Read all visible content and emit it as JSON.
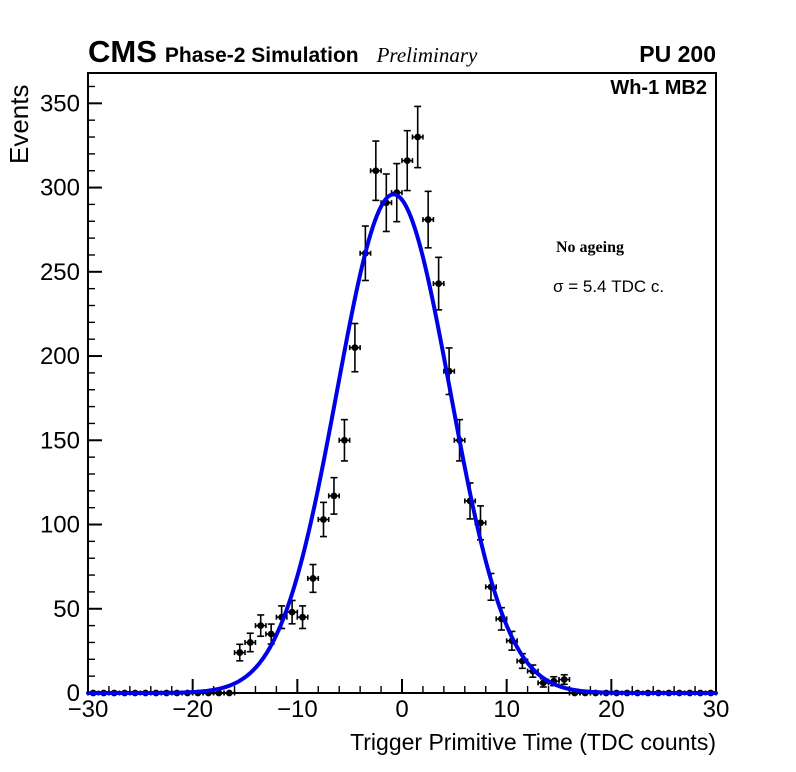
{
  "header": {
    "experiment": "CMS",
    "context": "Phase-2 Simulation",
    "status": "Preliminary",
    "pileup": "PU 200"
  },
  "plot": {
    "region_label": "Wh-1 MB2",
    "annotation_line1": "No ageing",
    "annotation_line2": "σ = 5.4 TDC c."
  },
  "chart_data": {
    "type": "scatter",
    "description": "Histogram of trigger primitive time (black points with Poisson error bars) with Gaussian fit curve",
    "title": "",
    "xlabel": "Trigger Primitive Time (TDC counts)",
    "ylabel": "Events",
    "xlim": [
      -30,
      30
    ],
    "ylim": [
      0,
      368
    ],
    "x_major_ticks": [
      -30,
      -20,
      -10,
      0,
      10,
      20,
      30
    ],
    "x_minor_step": 2,
    "y_major_ticks": [
      0,
      50,
      100,
      150,
      200,
      250,
      300,
      350
    ],
    "y_minor_step": 10,
    "grid": false,
    "legend": null,
    "bin_width": 1,
    "bin_centers": [
      -29.5,
      -28.5,
      -27.5,
      -26.5,
      -25.5,
      -24.5,
      -23.5,
      -22.5,
      -21.5,
      -20.5,
      -19.5,
      -18.5,
      -17.5,
      -16.5,
      -15.5,
      -14.5,
      -13.5,
      -12.5,
      -11.5,
      -10.5,
      -9.5,
      -8.5,
      -7.5,
      -6.5,
      -5.5,
      -4.5,
      -3.5,
      -2.5,
      -1.5,
      -0.5,
      0.5,
      1.5,
      2.5,
      3.5,
      4.5,
      5.5,
      6.5,
      7.5,
      8.5,
      9.5,
      10.5,
      11.5,
      12.5,
      13.5,
      14.5,
      15.5,
      16.5,
      17.5,
      18.5,
      19.5,
      20.5,
      21.5,
      22.5,
      23.5,
      24.5,
      25.5,
      26.5,
      27.5,
      28.5,
      29.5
    ],
    "counts": [
      0,
      0,
      0,
      0,
      0,
      0,
      0,
      0,
      0,
      0,
      0,
      0,
      0,
      0,
      24,
      30,
      40,
      35,
      45,
      48,
      45,
      68,
      103,
      117,
      150,
      205,
      261,
      310,
      291,
      297,
      316,
      330,
      281,
      243,
      191,
      150,
      114,
      101,
      63,
      44,
      31,
      19,
      13,
      6,
      7,
      8,
      0,
      0,
      0,
      0,
      0,
      0,
      0,
      0,
      0,
      0,
      0,
      0,
      0,
      0
    ],
    "error_model": "sqrt(counts)",
    "marker_color": "#000000",
    "fit": {
      "shape": "gaussian",
      "amplitude": 296,
      "mean": -0.8,
      "sigma": 5.4,
      "sigma_label": "σ = 5.4 TDC c.",
      "color": "#0000e8",
      "line_width": 4
    }
  }
}
